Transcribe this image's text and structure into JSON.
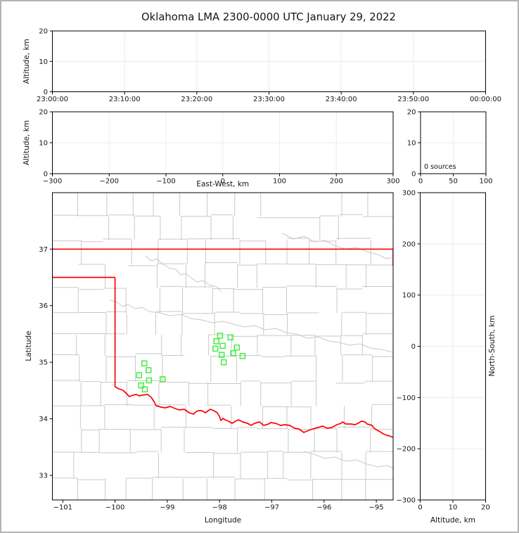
{
  "title": "Oklahoma LMA 2300-0000 UTC January 29, 2022",
  "panels": {
    "time_height": {
      "ylabel": "Altitude, km",
      "ytick_labels": [
        "0",
        "10",
        "20"
      ],
      "xtick_labels": [
        "23:00:00",
        "23:10:00",
        "23:20:00",
        "23:30:00",
        "23:40:00",
        "23:50:00",
        "00:00:00"
      ]
    },
    "ew_height": {
      "xlabel": "East-West, km",
      "ylabel": "Altitude, km",
      "xtick_labels": [
        "−300",
        "−200",
        "−100",
        "0",
        "100",
        "200",
        "300"
      ],
      "ytick_labels": [
        "0",
        "10",
        "20"
      ]
    },
    "histogram": {
      "annotation": "0 sources",
      "xtick_labels": [
        "0",
        "50",
        "100"
      ],
      "ytick_labels": [
        "0",
        "10",
        "20"
      ]
    },
    "map": {
      "xlabel": "Longitude",
      "ylabel": "Latitude",
      "xtick_labels": [
        "−101",
        "−100",
        "−99",
        "−98",
        "−97",
        "−96",
        "−95"
      ],
      "ytick_labels": [
        "33",
        "34",
        "35",
        "36",
        "37"
      ]
    },
    "ns_height": {
      "xlabel": "Altitude, km",
      "ylabel": "North-South, km",
      "xtick_labels": [
        "0",
        "10",
        "20"
      ],
      "ytick_labels": [
        "−300",
        "−200",
        "−100",
        "0",
        "100",
        "200",
        "300"
      ]
    }
  },
  "colors": {
    "state_border": "#ff0000",
    "county_lines": "#c9c9c9",
    "source_marker": "#44ee44",
    "gridline": "#ececec",
    "frame": "#000000",
    "window_border": "#b3b3b3"
  },
  "chart_data": {
    "type": "scatter",
    "title": "Oklahoma LMA 2300-0000 UTC January 29, 2022",
    "layout": "LMA multi-panel: altitude-vs-time (top), altitude-vs-east-west + source-count histogram (middle), plan-view lat/lon map + altitude-vs-north-south (right)",
    "time_range_utc": [
      "23:00:00",
      "00:00:00"
    ],
    "altitude_km_range": [
      0,
      20
    ],
    "east_west_km_range": [
      -300,
      300
    ],
    "north_south_km_range": [
      -300,
      300
    ],
    "histogram_counts_range": [
      0,
      100
    ],
    "histogram_annotation": "0 sources",
    "map_lon_range": [
      -101.2,
      -94.68
    ],
    "map_lat_range": [
      32.57,
      38.01
    ],
    "time_height_points": [],
    "ew_height_points": [],
    "ns_height_points": [],
    "map_sources_lon_lat": [
      [
        -99.44,
        34.98
      ],
      [
        -99.36,
        34.86
      ],
      [
        -99.54,
        34.77
      ],
      [
        -99.35,
        34.68
      ],
      [
        -99.09,
        34.7
      ],
      [
        -99.5,
        34.59
      ],
      [
        -99.43,
        34.52
      ],
      [
        -97.99,
        35.47
      ],
      [
        -97.79,
        35.44
      ],
      [
        -98.06,
        35.37
      ],
      [
        -97.94,
        35.29
      ],
      [
        -97.67,
        35.26
      ],
      [
        -98.08,
        35.24
      ],
      [
        -97.74,
        35.16
      ],
      [
        -97.96,
        35.13
      ],
      [
        -97.56,
        35.11
      ],
      [
        -97.92,
        35.0
      ]
    ]
  }
}
